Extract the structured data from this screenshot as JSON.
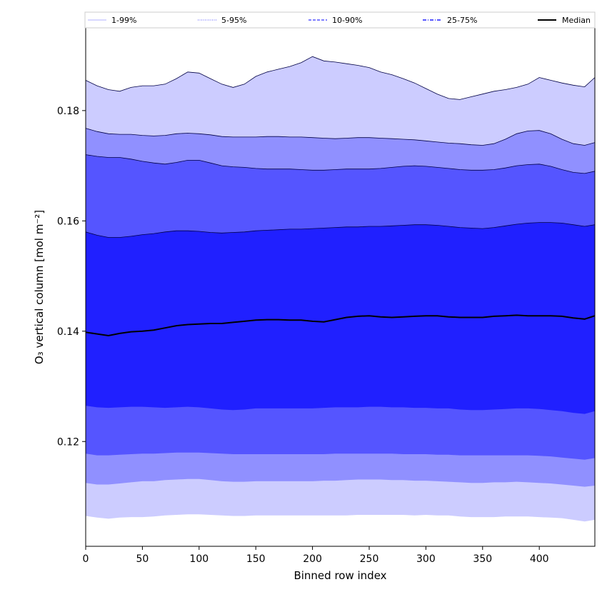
{
  "chart_data": {
    "type": "area",
    "title": "",
    "xlabel": "Binned row index",
    "ylabel": "O₃ vertical column [mol m⁻²]",
    "xlim": [
      0,
      449
    ],
    "ylim": [
      0.101,
      0.195
    ],
    "x_ticks": [
      0,
      50,
      100,
      150,
      200,
      250,
      300,
      350,
      400
    ],
    "y_ticks": [
      0.12,
      0.14,
      0.16,
      0.18
    ],
    "y_tick_labels": [
      "0.12",
      "0.14",
      "0.16",
      "0.18"
    ],
    "grid": false,
    "legend_position": "top",
    "legend": [
      {
        "label": "1-99%",
        "color": "#ccccff",
        "style": "solid"
      },
      {
        "label": "5-95%",
        "color": "#9090ff",
        "style": "dotted"
      },
      {
        "label": "10-90%",
        "color": "#5555ff",
        "style": "dashed"
      },
      {
        "label": "25-75%",
        "color": "#2020ff",
        "style": "dashdot"
      },
      {
        "label": "Median",
        "color": "#000000",
        "style": "solid"
      }
    ],
    "x": [
      0,
      10,
      20,
      30,
      40,
      50,
      60,
      70,
      80,
      90,
      100,
      110,
      120,
      130,
      140,
      150,
      160,
      170,
      180,
      190,
      200,
      210,
      220,
      230,
      240,
      250,
      260,
      270,
      280,
      290,
      300,
      310,
      320,
      330,
      340,
      350,
      360,
      370,
      380,
      390,
      400,
      410,
      420,
      430,
      440,
      449
    ],
    "series": [
      {
        "name": "1-99%",
        "color": "#ccccff",
        "lower": [
          0.1065,
          0.1062,
          0.106,
          0.1062,
          0.1063,
          0.1063,
          0.1064,
          0.1066,
          0.1067,
          0.1068,
          0.1068,
          0.1067,
          0.1066,
          0.1065,
          0.1065,
          0.1066,
          0.1066,
          0.1066,
          0.1066,
          0.1066,
          0.1066,
          0.1066,
          0.1066,
          0.1066,
          0.1067,
          0.1067,
          0.1067,
          0.1067,
          0.1067,
          0.1066,
          0.1067,
          0.1066,
          0.1066,
          0.1064,
          0.1063,
          0.1063,
          0.1063,
          0.1064,
          0.1064,
          0.1064,
          0.1063,
          0.1062,
          0.1061,
          0.1058,
          0.1055,
          0.1058
        ],
        "upper": [
          0.1855,
          0.1845,
          0.1838,
          0.1835,
          0.1842,
          0.1845,
          0.1845,
          0.1848,
          0.1858,
          0.187,
          0.1868,
          0.1858,
          0.1848,
          0.1842,
          0.1848,
          0.1862,
          0.187,
          0.1875,
          0.188,
          0.1887,
          0.1898,
          0.189,
          0.1888,
          0.1885,
          0.1882,
          0.1878,
          0.187,
          0.1865,
          0.1858,
          0.185,
          0.184,
          0.183,
          0.1822,
          0.182,
          0.1825,
          0.183,
          0.1835,
          0.1838,
          0.1842,
          0.1848,
          0.186,
          0.1855,
          0.185,
          0.1846,
          0.1843,
          0.186
        ]
      },
      {
        "name": "5-95%",
        "color": "#9090ff",
        "lower": [
          0.1125,
          0.1122,
          0.1122,
          0.1124,
          0.1126,
          0.1128,
          0.1128,
          0.113,
          0.1131,
          0.1132,
          0.1132,
          0.113,
          0.1128,
          0.1127,
          0.1127,
          0.1128,
          0.1128,
          0.1128,
          0.1128,
          0.1128,
          0.1128,
          0.1129,
          0.1129,
          0.113,
          0.1131,
          0.1131,
          0.1131,
          0.113,
          0.113,
          0.1129,
          0.1129,
          0.1128,
          0.1127,
          0.1126,
          0.1125,
          0.1125,
          0.1126,
          0.1126,
          0.1127,
          0.1126,
          0.1125,
          0.1124,
          0.1122,
          0.112,
          0.1118,
          0.112
        ],
        "upper": [
          0.1768,
          0.1762,
          0.1758,
          0.1757,
          0.1757,
          0.1755,
          0.1754,
          0.1755,
          0.1758,
          0.1759,
          0.1758,
          0.1756,
          0.1753,
          0.1752,
          0.1752,
          0.1752,
          0.1753,
          0.1753,
          0.1752,
          0.1752,
          0.1751,
          0.175,
          0.1749,
          0.175,
          0.1751,
          0.1751,
          0.175,
          0.1749,
          0.1748,
          0.1747,
          0.1745,
          0.1743,
          0.1741,
          0.174,
          0.1738,
          0.1737,
          0.174,
          0.1748,
          0.1758,
          0.1763,
          0.1764,
          0.1758,
          0.1748,
          0.174,
          0.1737,
          0.1742
        ]
      },
      {
        "name": "10-90%",
        "color": "#5555ff",
        "lower": [
          0.1178,
          0.1175,
          0.1175,
          0.1176,
          0.1177,
          0.1178,
          0.1178,
          0.1179,
          0.118,
          0.118,
          0.118,
          0.1179,
          0.1178,
          0.1177,
          0.1177,
          0.1177,
          0.1177,
          0.1177,
          0.1177,
          0.1177,
          0.1177,
          0.1177,
          0.1178,
          0.1178,
          0.1178,
          0.1178,
          0.1178,
          0.1178,
          0.1177,
          0.1177,
          0.1177,
          0.1176,
          0.1176,
          0.1175,
          0.1175,
          0.1175,
          0.1175,
          0.1175,
          0.1175,
          0.1175,
          0.1174,
          0.1173,
          0.1171,
          0.1169,
          0.1167,
          0.117
        ],
        "upper": [
          0.172,
          0.1717,
          0.1715,
          0.1715,
          0.1712,
          0.1708,
          0.1705,
          0.1703,
          0.1706,
          0.171,
          0.171,
          0.1705,
          0.17,
          0.1698,
          0.1697,
          0.1695,
          0.1694,
          0.1694,
          0.1694,
          0.1693,
          0.1692,
          0.1692,
          0.1693,
          0.1694,
          0.1694,
          0.1694,
          0.1695,
          0.1697,
          0.1699,
          0.17,
          0.1699,
          0.1697,
          0.1695,
          0.1693,
          0.1692,
          0.1692,
          0.1693,
          0.1696,
          0.17,
          0.1702,
          0.1703,
          0.1699,
          0.1693,
          0.1688,
          0.1686,
          0.169
        ]
      },
      {
        "name": "25-75%",
        "color": "#2020ff",
        "lower": [
          0.1265,
          0.1262,
          0.1261,
          0.1262,
          0.1263,
          0.1263,
          0.1262,
          0.1261,
          0.1262,
          0.1263,
          0.1262,
          0.126,
          0.1258,
          0.1257,
          0.1258,
          0.126,
          0.126,
          0.126,
          0.126,
          0.126,
          0.126,
          0.1261,
          0.1262,
          0.1262,
          0.1262,
          0.1263,
          0.1263,
          0.1262,
          0.1262,
          0.1261,
          0.1261,
          0.126,
          0.126,
          0.1258,
          0.1257,
          0.1257,
          0.1258,
          0.1259,
          0.126,
          0.126,
          0.1259,
          0.1257,
          0.1255,
          0.1252,
          0.125,
          0.1255
        ],
        "upper": [
          0.158,
          0.1574,
          0.157,
          0.157,
          0.1572,
          0.1575,
          0.1577,
          0.158,
          0.1582,
          0.1582,
          0.1581,
          0.1579,
          0.1578,
          0.1579,
          0.158,
          0.1582,
          0.1583,
          0.1584,
          0.1585,
          0.1585,
          0.1586,
          0.1587,
          0.1588,
          0.1589,
          0.1589,
          0.159,
          0.159,
          0.1591,
          0.1592,
          0.1593,
          0.1593,
          0.1592,
          0.159,
          0.1588,
          0.1587,
          0.1586,
          0.1588,
          0.1591,
          0.1594,
          0.1596,
          0.1597,
          0.1597,
          0.1596,
          0.1593,
          0.159,
          0.1593
        ]
      },
      {
        "name": "Median",
        "color": "#000000",
        "values": [
          0.1398,
          0.1395,
          0.1392,
          0.1396,
          0.1399,
          0.14,
          0.1402,
          0.1406,
          0.141,
          0.1412,
          0.1413,
          0.1414,
          0.1414,
          0.1416,
          0.1418,
          0.142,
          0.1421,
          0.1421,
          0.142,
          0.142,
          0.1418,
          0.1417,
          0.1421,
          0.1425,
          0.1427,
          0.1428,
          0.1426,
          0.1425,
          0.1426,
          0.1427,
          0.1428,
          0.1428,
          0.1426,
          0.1425,
          0.1425,
          0.1425,
          0.1427,
          0.1428,
          0.1429,
          0.1428,
          0.1428,
          0.1428,
          0.1427,
          0.1424,
          0.1422,
          0.1428
        ]
      }
    ]
  }
}
